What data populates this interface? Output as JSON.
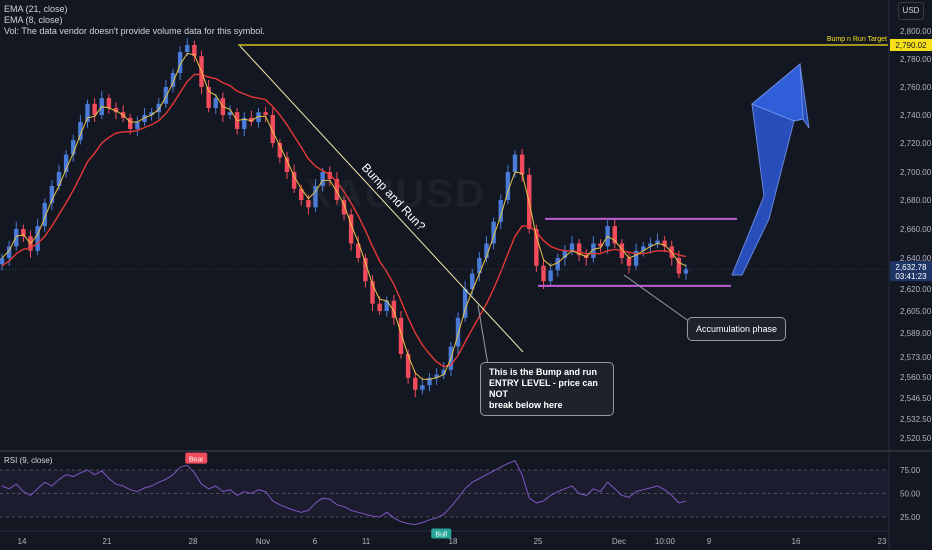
{
  "legend": {
    "ema21": "EMA (21, close)",
    "ema8": "EMA (8, close)",
    "vol": "Vol: The data vendor doesn't provide volume data for this symbol."
  },
  "currency_button": "USD",
  "watermark": "XAUUSD",
  "annotations": {
    "bump_run": "Bump and Run?",
    "target_label": "Bump n Run Target",
    "entry_callout": [
      "This is the Bump and run",
      "ENTRY LEVEL - price can NOT",
      "break below here"
    ],
    "accumulation": "Accumulation phase",
    "bear_label": "Bear",
    "bull_label": "Bull",
    "rsi_label": "RSI (9, close)"
  },
  "price_tags": {
    "target": "2,790.02",
    "current": "2,632.78",
    "countdown": "03:41:23"
  },
  "colors": {
    "background": "#131722",
    "up": "#4a7bd8",
    "down": "#f24c5c",
    "ema21": "#e53935",
    "ema8": "#e8c547",
    "target_line": "#f7e119",
    "range_lines": "#c05cd6",
    "rsi_line": "#7e57c2",
    "arrow": "#2a53c8"
  },
  "chart_data": {
    "type": "candlestick",
    "symbol_hint": "XAUUSD",
    "price_axis_ticks": [
      2800.0,
      2780.0,
      2760.0,
      2740.0,
      2720.0,
      2700.0,
      2680.0,
      2660.0,
      2640.0,
      2620.0,
      2605.0,
      2589.0,
      2573.0,
      2560.5,
      2546.5,
      2532.5,
      2520.5
    ],
    "price_axis_labels": [
      "2,800.00",
      "2,780.00",
      "2,760.00",
      "2,740.00",
      "2,720.00",
      "2,700.00",
      "2,680.00",
      "2,660.00",
      "2,640.00",
      "2,620.00",
      "2,605.00",
      "2,589.00",
      "2,573.00",
      "2,560.50",
      "2,546.50",
      "2,532.50",
      "2,520.50"
    ],
    "time_axis_labels": [
      "14",
      "21",
      "28",
      "Nov",
      "6",
      "11",
      "18",
      "25",
      "Dec",
      "10:00",
      "9",
      "16",
      "23"
    ],
    "rsi_ticks": [
      75.0,
      50.0,
      25.0
    ],
    "rsi_labels": [
      "75.00",
      "50.00",
      "25.00"
    ],
    "levels": {
      "bump_target": 2790.02,
      "range_top": 2667,
      "range_bottom": 2622,
      "current_price": 2632.78
    },
    "close_path": [
      2640,
      2648,
      2660,
      2655,
      2645,
      2662,
      2678,
      2690,
      2700,
      2712,
      2722,
      2735,
      2748,
      2740,
      2752,
      2745,
      2742,
      2738,
      2730,
      2735,
      2740,
      2742,
      2748,
      2760,
      2770,
      2785,
      2790,
      2782,
      2760,
      2745,
      2752,
      2740,
      2742,
      2730,
      2738,
      2735,
      2742,
      2740,
      2720,
      2710,
      2700,
      2688,
      2680,
      2675,
      2690,
      2700,
      2695,
      2680,
      2670,
      2650,
      2640,
      2625,
      2610,
      2605,
      2612,
      2600,
      2575,
      2560,
      2552,
      2555,
      2560,
      2562,
      2565,
      2580,
      2600,
      2620,
      2630,
      2640,
      2650,
      2665,
      2680,
      2700,
      2712,
      2698,
      2660,
      2635,
      2625,
      2632,
      2640,
      2645,
      2650,
      2642,
      2640,
      2650,
      2648,
      2662,
      2650,
      2640,
      2635,
      2645,
      2648,
      2650,
      2652,
      2648,
      2640,
      2630,
      2633
    ],
    "ema8_path": [
      2640,
      2645,
      2655,
      2656,
      2650,
      2656,
      2668,
      2680,
      2690,
      2702,
      2713,
      2726,
      2738,
      2739,
      2746,
      2745,
      2743,
      2740,
      2735,
      2735,
      2738,
      2740,
      2744,
      2753,
      2763,
      2776,
      2784,
      2783,
      2771,
      2757,
      2754,
      2746,
      2744,
      2736,
      2737,
      2736,
      2739,
      2739,
      2728,
      2718,
      2708,
      2697,
      2688,
      2681,
      2686,
      2694,
      2694,
      2686,
      2677,
      2663,
      2651,
      2637,
      2623,
      2613,
      2612,
      2605,
      2589,
      2574,
      2563,
      2559,
      2559,
      2560,
      2562,
      2572,
      2588,
      2606,
      2619,
      2630,
      2641,
      2655,
      2669,
      2686,
      2700,
      2699,
      2678,
      2655,
      2639,
      2635,
      2637,
      2641,
      2645,
      2643,
      2641,
      2646,
      2647,
      2655,
      2652,
      2646,
      2640,
      2642,
      2645,
      2648,
      2650,
      2649,
      2644,
      2637,
      2635
    ],
    "ema21_path": [
      2635,
      2638,
      2643,
      2646,
      2647,
      2650,
      2655,
      2662,
      2670,
      2678,
      2687,
      2697,
      2707,
      2713,
      2720,
      2724,
      2727,
      2728,
      2728,
      2729,
      2731,
      2733,
      2736,
      2741,
      2748,
      2756,
      2764,
      2769,
      2769,
      2767,
      2766,
      2763,
      2761,
      2757,
      2755,
      2753,
      2752,
      2751,
      2746,
      2740,
      2733,
      2725,
      2717,
      2709,
      2704,
      2701,
      2698,
      2693,
      2686,
      2678,
      2669,
      2659,
      2648,
      2638,
      2631,
      2623,
      2612,
      2600,
      2589,
      2581,
      2575,
      2570,
      2567,
      2568,
      2574,
      2583,
      2592,
      2601,
      2610,
      2620,
      2631,
      2643,
      2655,
      2662,
      2662,
      2658,
      2652,
      2648,
      2646,
      2645,
      2645,
      2644,
      2643,
      2643,
      2643,
      2645,
      2646,
      2645,
      2644,
      2643,
      2643,
      2644,
      2645,
      2645,
      2644,
      2642,
      2641
    ],
    "rsi_path": [
      58,
      55,
      60,
      52,
      48,
      55,
      62,
      58,
      65,
      70,
      68,
      72,
      75,
      70,
      74,
      66,
      60,
      58,
      54,
      52,
      56,
      58,
      62,
      65,
      70,
      78,
      80,
      72,
      60,
      55,
      58,
      52,
      54,
      48,
      52,
      50,
      54,
      52,
      42,
      38,
      35,
      32,
      30,
      32,
      40,
      45,
      44,
      38,
      36,
      32,
      30,
      28,
      26,
      25,
      30,
      24,
      20,
      18,
      17,
      19,
      22,
      24,
      28,
      36,
      45,
      55,
      62,
      66,
      70,
      74,
      78,
      82,
      85,
      70,
      45,
      40,
      42,
      48,
      52,
      55,
      58,
      50,
      48,
      55,
      52,
      62,
      55,
      48,
      46,
      52,
      54,
      56,
      58,
      54,
      48,
      40,
      42
    ],
    "rsi_signals": [
      {
        "label": "Bear",
        "near_index": 26
      },
      {
        "label": "Bull",
        "near_index": 58
      }
    ]
  }
}
